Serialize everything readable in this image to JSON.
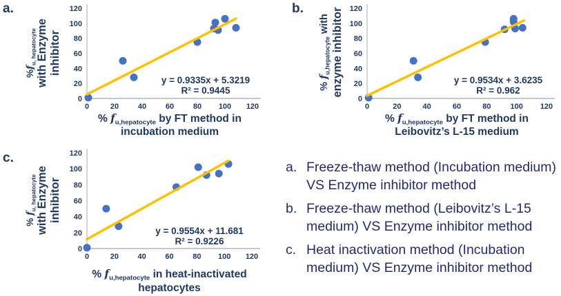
{
  "colors": {
    "dot": "#4472C4",
    "trendline": "#FFC000",
    "chart_text": "#1F3864",
    "caption_text": "#232A72",
    "axis": "#BFBFBF"
  },
  "chart_data": [
    {
      "type": "scatter",
      "panel_label": "a.",
      "xlabel": "% fu,hepatocyte by FT method in incubation medium",
      "ylabel": "%fu, hepatocyte with Enzyme inhibitor",
      "xlim": [
        0,
        120
      ],
      "ylim": [
        0,
        120
      ],
      "xticks": [
        0,
        20,
        40,
        60,
        80,
        100,
        120
      ],
      "yticks": [
        0,
        20,
        40,
        60,
        80,
        100,
        120
      ],
      "grid": false,
      "points": [
        [
          1,
          1
        ],
        [
          26,
          50
        ],
        [
          34,
          28
        ],
        [
          80,
          75
        ],
        [
          92,
          93
        ],
        [
          93,
          101
        ],
        [
          95,
          91
        ],
        [
          100,
          106
        ],
        [
          108,
          94
        ]
      ],
      "trendline": {
        "slope": 0.9335,
        "intercept": 5.3219,
        "x_range": [
          0,
          108
        ],
        "equation": "y = 0.9335x + 5.3219",
        "r2": "R² = 0.9445"
      },
      "xlabel_rich": [
        [
          {
            "t": "% "
          },
          {
            "t": "f",
            "f": 1
          },
          {
            "t": "u,hepatocyte",
            "sub": 1
          },
          {
            "t": " by FT method in"
          }
        ],
        [
          {
            "t": "incubation medium"
          }
        ]
      ],
      "ylabel_rich": [
        [
          {
            "t": "%"
          },
          {
            "t": "f",
            "f": 1
          },
          {
            "t": "u, hepatocyte",
            "sub": 1
          }
        ],
        [
          {
            "t": "with Enzyme"
          }
        ],
        [
          {
            "t": "inhibitor"
          }
        ]
      ]
    },
    {
      "type": "scatter",
      "panel_label": "b.",
      "xlabel": "% fu,hepatocyte by FT method in Leibovitz's L-15 medium",
      "ylabel": "% fu,hepatocyte with enzyme inhibitor",
      "xlim": [
        0,
        120
      ],
      "ylim": [
        0,
        120
      ],
      "xticks": [
        0,
        20,
        40,
        60,
        80,
        100,
        120
      ],
      "yticks": [
        0,
        20,
        40,
        60,
        80,
        100,
        120
      ],
      "grid": false,
      "points": [
        [
          1,
          1
        ],
        [
          31,
          50
        ],
        [
          34,
          28
        ],
        [
          79,
          75
        ],
        [
          92,
          92
        ],
        [
          98,
          102
        ],
        [
          98,
          106
        ],
        [
          99,
          93
        ],
        [
          104,
          94
        ]
      ],
      "trendline": {
        "slope": 0.9534,
        "intercept": 3.6235,
        "x_range": [
          0,
          105
        ],
        "equation": "y = 0.9534x + 3.6235",
        "r2": "R² = 0.962"
      },
      "xlabel_rich": [
        [
          {
            "t": "% "
          },
          {
            "t": "f",
            "f": 1
          },
          {
            "t": "u,hepatocyte",
            "sub": 1
          },
          {
            "t": " by FT method in"
          }
        ],
        [
          {
            "t": "Leibovitz’s L-15 medium"
          }
        ]
      ],
      "ylabel_rich": [
        [
          {
            "t": "% "
          },
          {
            "t": "f",
            "f": 1
          },
          {
            "t": "u,hepatocyte",
            "sub": 1
          },
          {
            "t": " with"
          }
        ],
        [
          {
            "t": "enzyme inhibitor"
          }
        ]
      ]
    },
    {
      "type": "scatter",
      "panel_label": "c.",
      "xlabel": "% fu,hepatocyte in heat-inactivated hepatocytes",
      "ylabel": "% fu, hepatocyte with Enzyme inhibitor",
      "xlim": [
        0,
        120
      ],
      "ylim": [
        0,
        120
      ],
      "xticks": [
        0,
        20,
        40,
        60,
        80,
        100,
        120
      ],
      "yticks": [
        0,
        20,
        40,
        60,
        80,
        100,
        120
      ],
      "grid": false,
      "points": [
        [
          0,
          1
        ],
        [
          14,
          50
        ],
        [
          23,
          28
        ],
        [
          65,
          77
        ],
        [
          81,
          102
        ],
        [
          87,
          92
        ],
        [
          96,
          94
        ],
        [
          103,
          106
        ]
      ],
      "trendline": {
        "slope": 0.9554,
        "intercept": 11.681,
        "x_range": [
          0,
          103
        ],
        "equation": "y = 0.9554x + 11.681",
        "r2": "R² = 0.9226"
      },
      "xlabel_rich": [
        [
          {
            "t": "% "
          },
          {
            "t": "f",
            "f": 1
          },
          {
            "t": "u,hepatocyte",
            "sub": 1
          },
          {
            "t": " in heat-inactivated"
          }
        ],
        [
          {
            "t": "hepatocytes"
          }
        ]
      ],
      "ylabel_rich": [
        [
          {
            "t": "% "
          },
          {
            "t": "f",
            "f": 1
          },
          {
            "t": "u, hepatocyte",
            "sub": 1
          }
        ],
        [
          {
            "t": "with Enzyme"
          }
        ],
        [
          {
            "t": "inhibitor"
          }
        ]
      ]
    }
  ],
  "legend": {
    "items": [
      {
        "marker": "a.",
        "text": "Freeze-thaw method (Incubation medium) VS Enzyme inhibitor method"
      },
      {
        "marker": "b.",
        "text": "Freeze-thaw method (Leibovitz’s L-15 medium) VS Enzyme inhibitor method"
      },
      {
        "marker": "c.",
        "text": "Heat inactivation method (Incubation medium) VS Enzyme inhibitor method"
      }
    ]
  }
}
